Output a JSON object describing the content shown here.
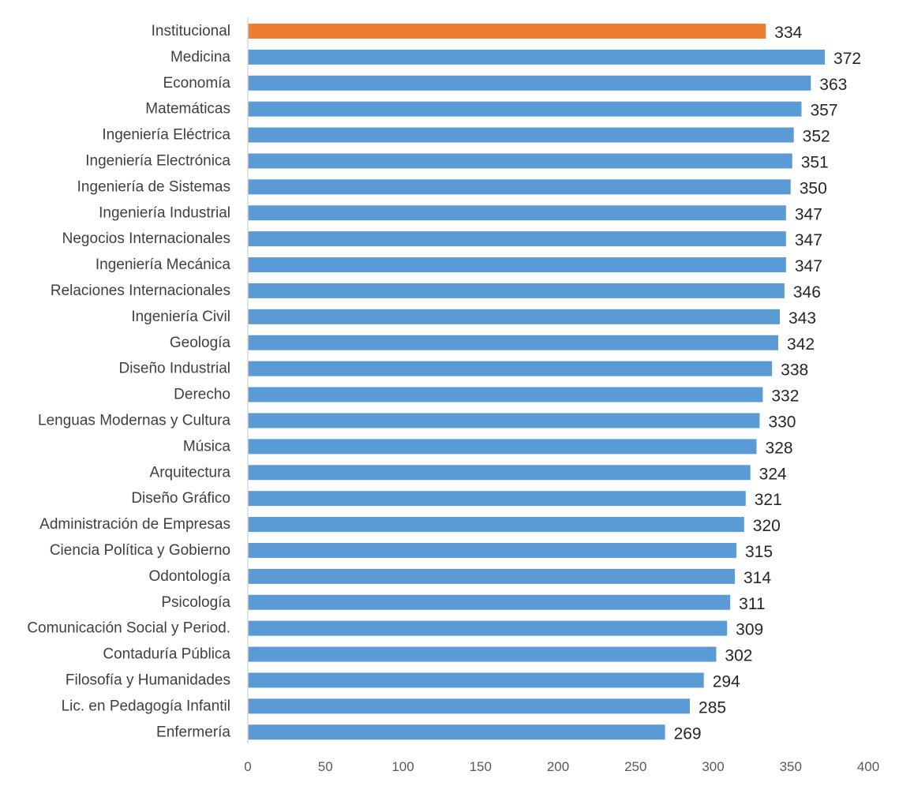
{
  "chart_data": {
    "type": "bar",
    "orientation": "horizontal",
    "title": "",
    "xlabel": "",
    "ylabel": "",
    "xlim": [
      0,
      400
    ],
    "x_ticks": [
      0,
      50,
      100,
      150,
      200,
      250,
      300,
      350,
      400
    ],
    "grid": false,
    "legend": "none",
    "categories": [
      "Institucional",
      "Medicina",
      "Economía",
      "Matemáticas",
      "Ingeniería Eléctrica",
      "Ingeniería Electrónica",
      "Ingeniería de Sistemas",
      "Ingeniería Industrial",
      "Negocios Internacionales",
      "Ingeniería Mecánica",
      "Relaciones Internacionales",
      "Ingeniería Civil",
      "Geología",
      "Diseño Industrial",
      "Derecho",
      "Lenguas Modernas y Cultura",
      "Música",
      "Arquitectura",
      "Diseño Gráfico",
      "Administración de Empresas",
      "Ciencia Política y Gobierno",
      "Odontología",
      "Psicología",
      "Comunicación Social y Period.",
      "Contaduría Pública",
      "Filosofía y Humanidades",
      "Lic. en Pedagogía Infantil",
      "Enfermería"
    ],
    "values": [
      334,
      372,
      363,
      357,
      352,
      351,
      350,
      347,
      347,
      347,
      346,
      343,
      342,
      338,
      332,
      330,
      328,
      324,
      321,
      320,
      315,
      314,
      311,
      309,
      302,
      294,
      285,
      269
    ],
    "data_labels": [
      "334",
      "372",
      "363",
      "357",
      "352",
      "351",
      "350",
      "347",
      "347",
      "347",
      "346",
      "343",
      "342",
      "338",
      "332",
      "330",
      "328",
      "324",
      "321",
      "320",
      "315",
      "314",
      "311",
      "309",
      "302",
      "294",
      "285",
      "269"
    ],
    "tick_labels": [
      "0",
      "50",
      "100",
      "150",
      "200",
      "250",
      "300",
      "350",
      "400"
    ],
    "highlight_index": 0,
    "colors": {
      "highlight": "#ED7D31",
      "default": "#5B9BD5",
      "axis": "#D9D9D9"
    }
  }
}
